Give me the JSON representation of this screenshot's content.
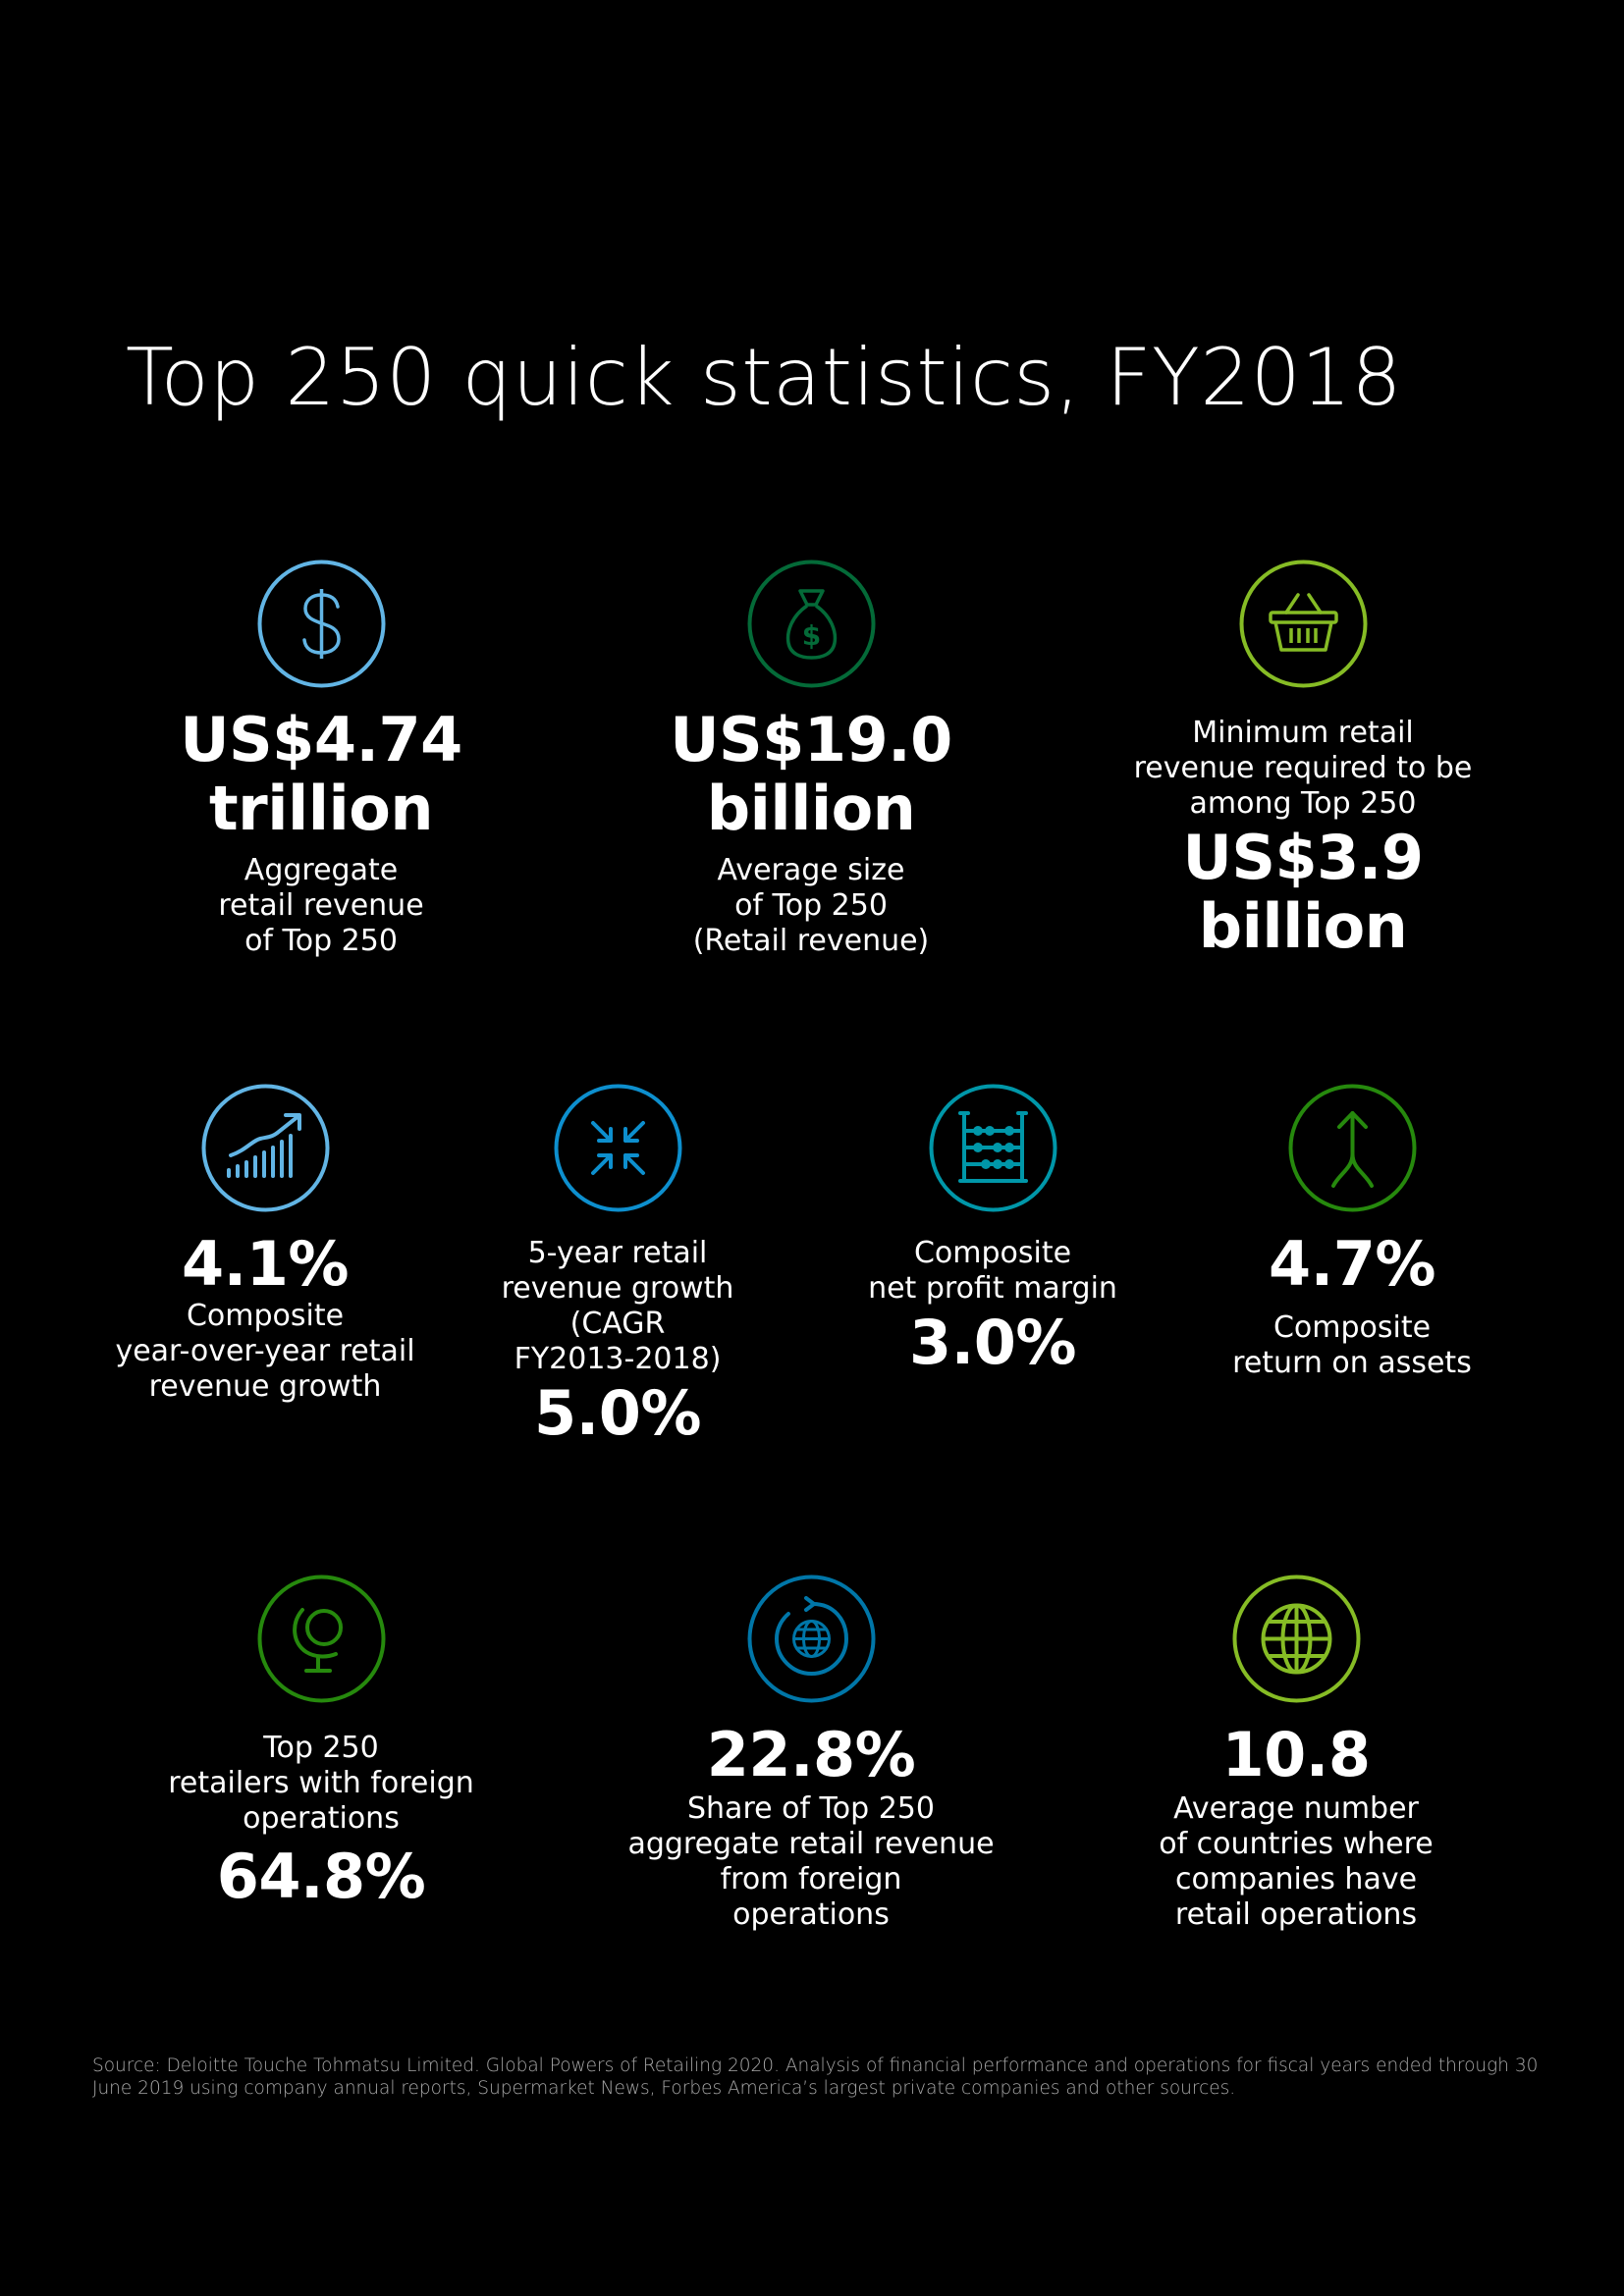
{
  "title": "Top 250 quick statistics, FY2018",
  "colors": {
    "background": "#000000",
    "light_blue": "#62b5e5",
    "dark_green": "#046a38",
    "lime_green": "#86bc25",
    "green": "#26890d",
    "blue": "#0d8fce",
    "teal": "#0097a9",
    "dark_blue": "#0076a8"
  },
  "stats": [
    {
      "icon": "dollar-icon",
      "value": "US$4.74\ntrillion",
      "description": "Aggregate\nretail revenue\nof Top 250"
    },
    {
      "icon": "money-bag-icon",
      "value": "US$19.0\nbillion",
      "description": "Average size\nof Top 250\n(Retail revenue)"
    },
    {
      "icon": "shopping-basket-icon",
      "description": "Minimum retail\nrevenue required to be\namong Top 250",
      "value": "US$3.9\nbillion"
    },
    {
      "icon": "growth-chart-icon",
      "value": "4.1%",
      "description": "Composite\nyear-over-year retail\nrevenue growth"
    },
    {
      "icon": "compress-arrows-icon",
      "description": "5-year retail\nrevenue growth\n(CAGR\nFY2013-2018)",
      "value": "5.0%"
    },
    {
      "icon": "abacus-icon",
      "description": "Composite\nnet profit margin",
      "value": "3.0%"
    },
    {
      "icon": "merging-arrow-icon",
      "value": "4.7%",
      "description": "Composite\nreturn on assets"
    },
    {
      "icon": "desk-globe-icon",
      "description": "Top 250\nretailers with foreign\noperations",
      "value": "64.8%"
    },
    {
      "icon": "rotating-globe-icon",
      "value": "22.8%",
      "description": "Share of Top 250\naggregate retail revenue\nfrom foreign\noperations"
    },
    {
      "icon": "globe-icon",
      "value": "10.8",
      "description": "Average number\nof countries where\ncompanies have\nretail operations"
    }
  ],
  "source": "Source: Deloitte Touche Tohmatsu Limited. Global Powers of Retailing 2020. Analysis of financial performance and operations for fiscal years ended through 30 June 2019 using company annual reports, Supermarket News, Forbes America’s largest private companies and other sources."
}
